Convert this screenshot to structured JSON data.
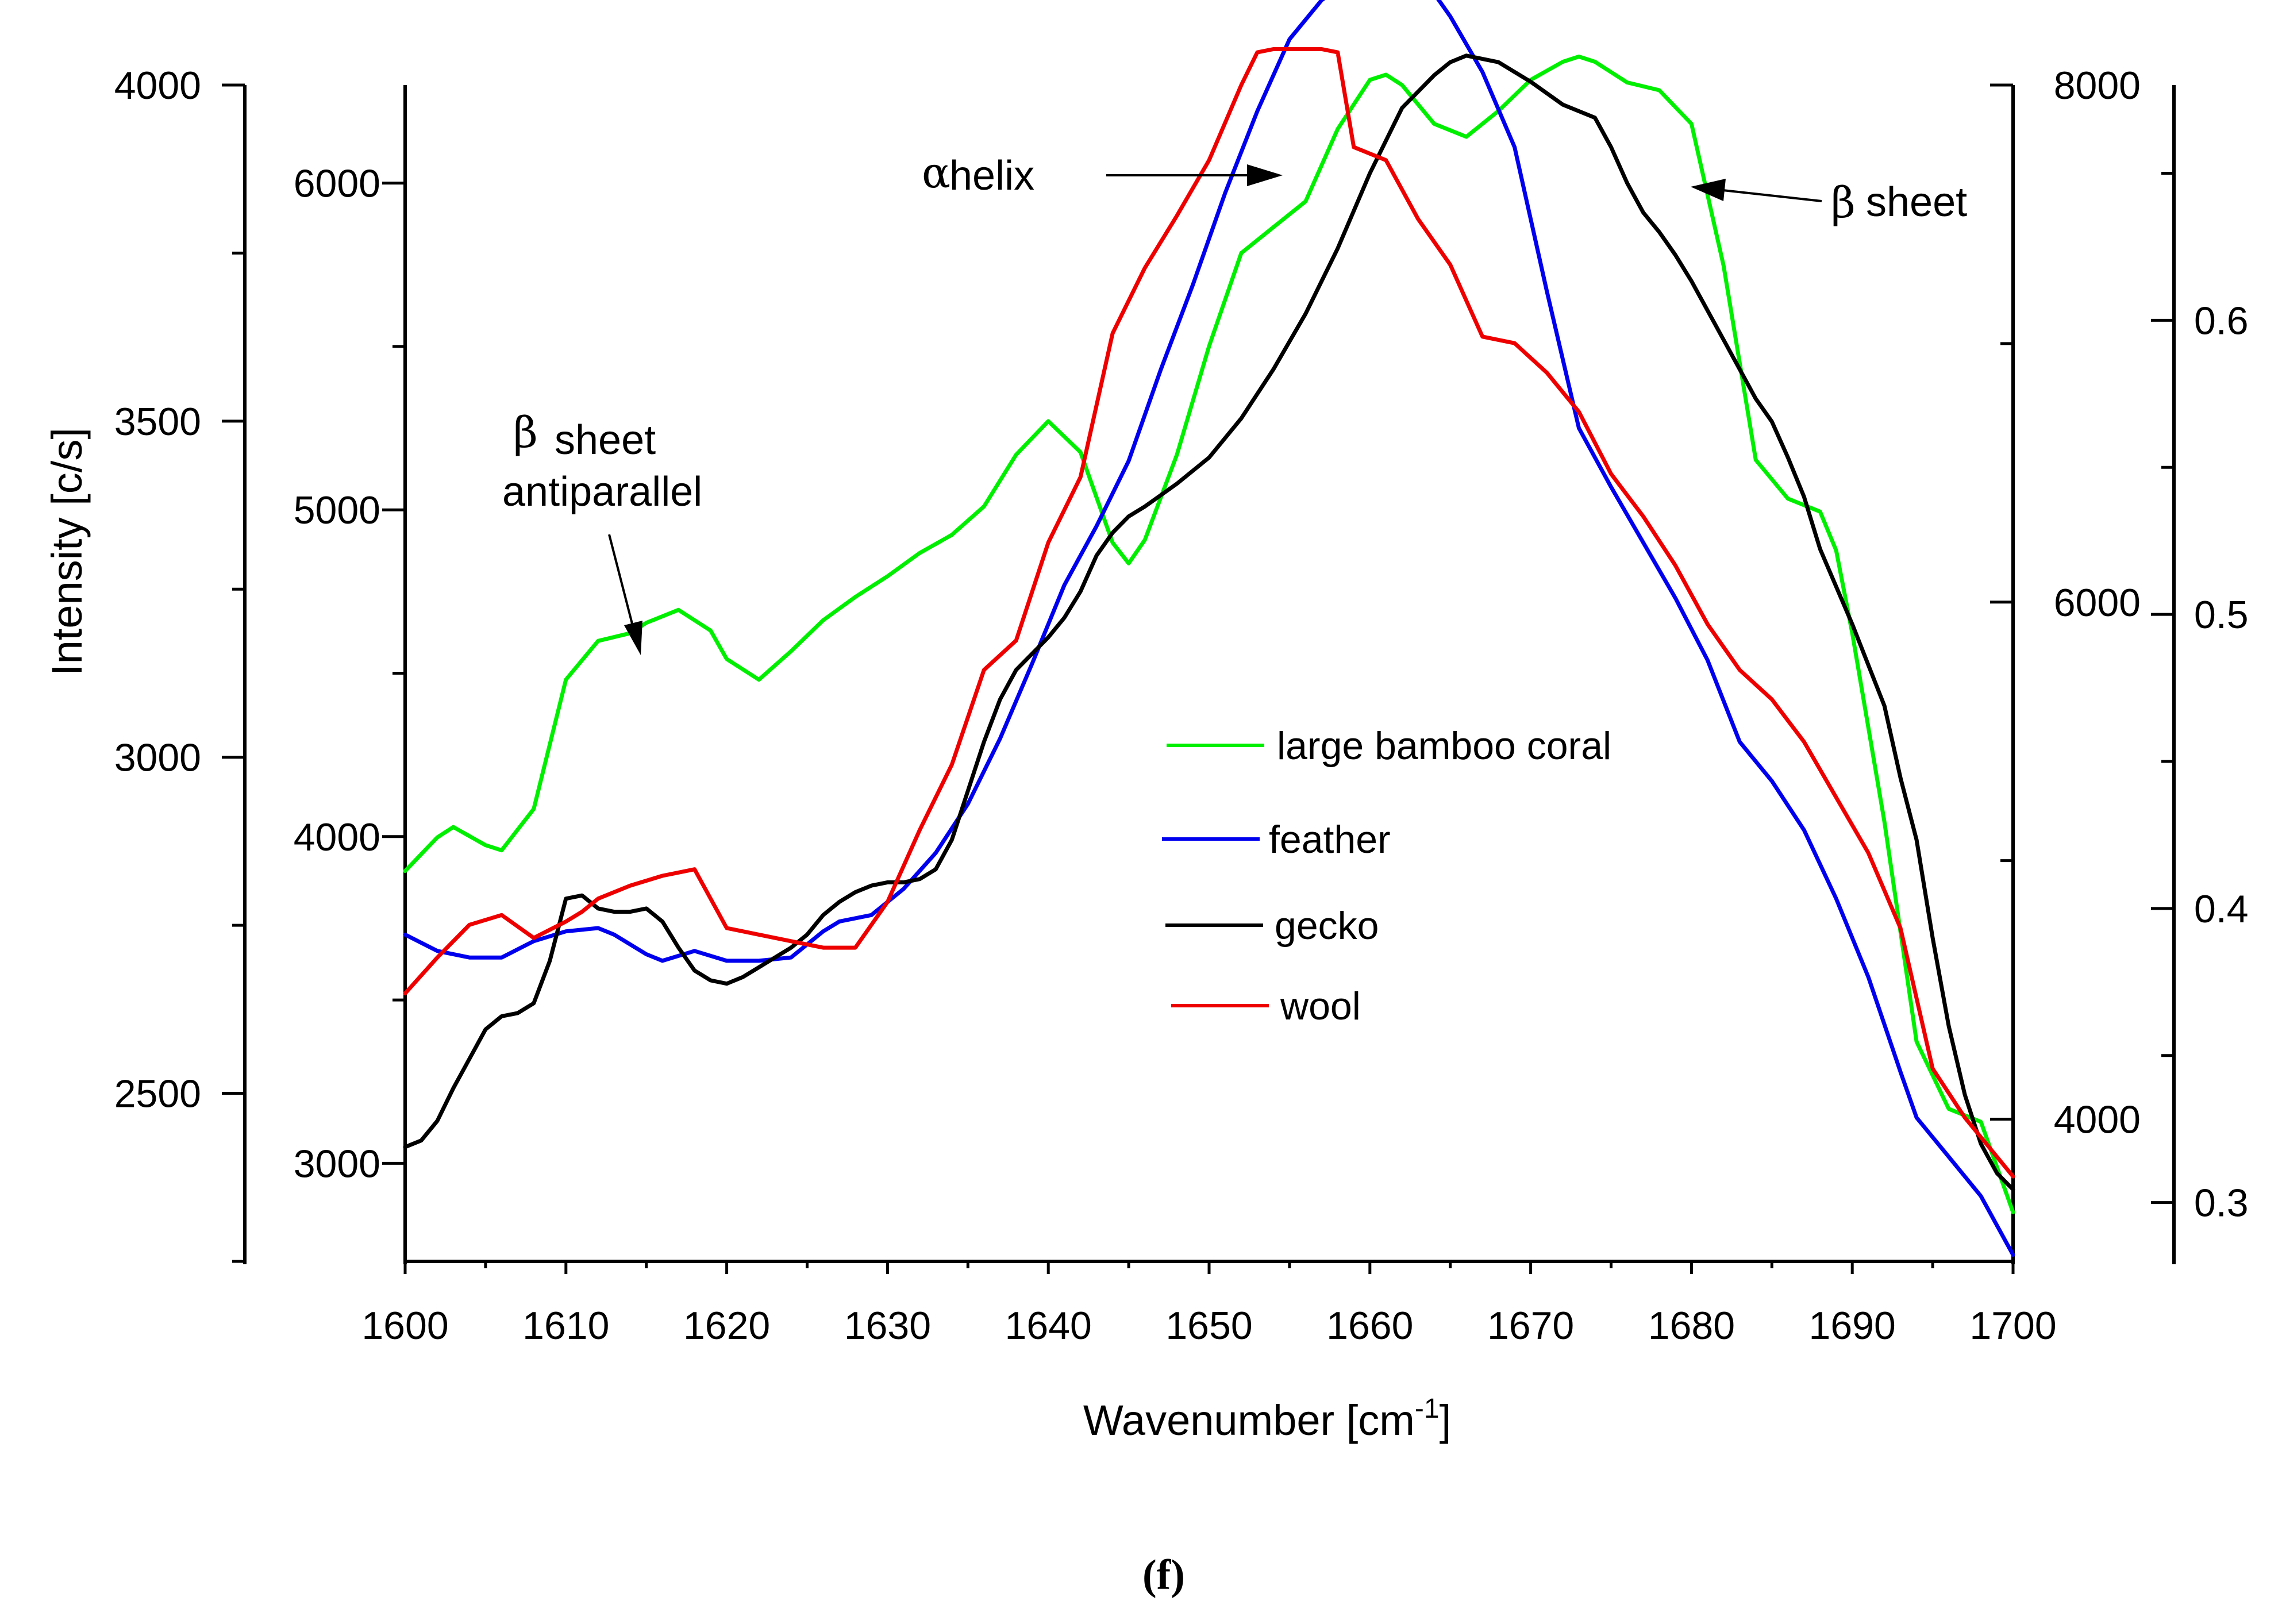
{
  "chart_data": {
    "type": "line",
    "xlabel": "Wavenumber [cm",
    "xlabel_sup": "-1",
    "xlabel_end": "]",
    "ylabel": "Intensity [c/s]",
    "caption": "(f)",
    "xlim": [
      1600,
      1700
    ],
    "x_ticks": [
      "1600",
      "1610",
      "1620",
      "1630",
      "1640",
      "1650",
      "1660",
      "1670",
      "1680",
      "1690",
      "1700"
    ],
    "y_axes": [
      {
        "name": "left-outer",
        "ylim": [
          2250,
          4000
        ],
        "ticks": [
          "2500",
          "3000",
          "3500",
          "4000"
        ]
      },
      {
        "name": "left-inner",
        "ylim": [
          2700,
          6300
        ],
        "ticks": [
          "3000",
          "4000",
          "5000",
          "6000"
        ]
      },
      {
        "name": "right-inner",
        "ylim": [
          3450,
          8000
        ],
        "ticks": [
          "4000",
          "6000",
          "8000"
        ]
      },
      {
        "name": "right-outer",
        "ylim": [
          0.28,
          0.68
        ],
        "ticks": [
          "0.3",
          "0.4",
          "0.5",
          "0.6"
        ]
      }
    ],
    "series": [
      {
        "name": "large bamboo coral",
        "color": "#00ee00",
        "axis": "right-inner",
        "x": [
          1600,
          1602,
          1603,
          1605,
          1606,
          1608,
          1610,
          1612,
          1614,
          1615,
          1617,
          1619,
          1620,
          1622,
          1624,
          1626,
          1628,
          1630,
          1632,
          1634,
          1636,
          1638,
          1640,
          1642,
          1644,
          1645,
          1646,
          1648,
          1650,
          1652,
          1654,
          1656,
          1658,
          1660,
          1661,
          1662,
          1664,
          1666,
          1668,
          1670,
          1672,
          1673,
          1674,
          1676,
          1678,
          1680,
          1682,
          1684,
          1686,
          1688,
          1689,
          1690,
          1692,
          1694,
          1696,
          1698,
          1700
        ],
        "y": [
          4960,
          5090,
          5130,
          5060,
          5040,
          5200,
          5700,
          5850,
          5880,
          5920,
          5970,
          5890,
          5780,
          5700,
          5810,
          5930,
          6020,
          6100,
          6190,
          6260,
          6370,
          6570,
          6700,
          6580,
          6230,
          6150,
          6240,
          6570,
          6990,
          7350,
          7450,
          7550,
          7830,
          8020,
          8040,
          8000,
          7850,
          7800,
          7900,
          8020,
          8090,
          8110,
          8090,
          8010,
          7980,
          7850,
          7300,
          6550,
          6400,
          6350,
          6200,
          5880,
          5150,
          4300,
          4040,
          3990,
          3640
        ]
      },
      {
        "name": "feather",
        "color": "#0000ee",
        "axis": "left-inner",
        "x": [
          1600,
          1602,
          1604,
          1606,
          1608,
          1610,
          1612,
          1613,
          1615,
          1616,
          1618,
          1620,
          1622,
          1624,
          1626,
          1627,
          1629,
          1631,
          1633,
          1635,
          1637,
          1639,
          1641,
          1643,
          1645,
          1647,
          1649,
          1651,
          1653,
          1655,
          1657,
          1659,
          1661,
          1662,
          1663,
          1665,
          1667,
          1669,
          1671,
          1673,
          1675,
          1677,
          1679,
          1681,
          1683,
          1685,
          1687,
          1689,
          1691,
          1693,
          1694,
          1696,
          1698,
          1700
        ],
        "y": [
          3700,
          3650,
          3630,
          3630,
          3680,
          3710,
          3720,
          3700,
          3640,
          3620,
          3650,
          3620,
          3620,
          3630,
          3710,
          3740,
          3760,
          3840,
          3950,
          4100,
          4300,
          4530,
          4770,
          4950,
          5150,
          5430,
          5690,
          5970,
          6220,
          6440,
          6560,
          6630,
          6690,
          6660,
          6650,
          6510,
          6340,
          6110,
          5670,
          5250,
          5070,
          4900,
          4730,
          4540,
          4290,
          4170,
          4020,
          3810,
          3570,
          3280,
          3140,
          3020,
          2900,
          2720
        ]
      },
      {
        "name": "gecko",
        "color": "#000000",
        "axis": "left-inner",
        "x": [
          1600,
          1601,
          1602,
          1603,
          1604,
          1605,
          1606,
          1607,
          1608,
          1609,
          1610,
          1611,
          1612,
          1613,
          1614,
          1615,
          1616,
          1617,
          1618,
          1619,
          1620,
          1621,
          1622,
          1623,
          1624,
          1625,
          1626,
          1627,
          1628,
          1629,
          1630,
          1631,
          1632,
          1633,
          1634,
          1635,
          1636,
          1637,
          1638,
          1639,
          1640,
          1641,
          1642,
          1643,
          1644,
          1645,
          1646,
          1648,
          1650,
          1652,
          1654,
          1656,
          1658,
          1660,
          1662,
          1664,
          1665,
          1666,
          1668,
          1670,
          1672,
          1674,
          1675,
          1676,
          1677,
          1678,
          1679,
          1680,
          1682,
          1684,
          1685,
          1686,
          1687,
          1688,
          1690,
          1692,
          1693,
          1694,
          1695,
          1696,
          1697,
          1698,
          1699,
          1700
        ],
        "y": [
          3050,
          3070,
          3130,
          3230,
          3320,
          3410,
          3450,
          3460,
          3490,
          3620,
          3810,
          3820,
          3780,
          3770,
          3770,
          3780,
          3740,
          3660,
          3590,
          3560,
          3550,
          3570,
          3600,
          3630,
          3660,
          3700,
          3760,
          3800,
          3830,
          3850,
          3860,
          3860,
          3870,
          3900,
          3990,
          4140,
          4290,
          4420,
          4510,
          4560,
          4610,
          4670,
          4750,
          4860,
          4930,
          4980,
          5010,
          5080,
          5160,
          5280,
          5430,
          5600,
          5800,
          6030,
          6230,
          6330,
          6370,
          6390,
          6370,
          6310,
          6240,
          6200,
          6110,
          6000,
          5910,
          5850,
          5780,
          5700,
          5520,
          5340,
          5270,
          5160,
          5040,
          4880,
          4650,
          4400,
          4180,
          3990,
          3690,
          3420,
          3210,
          3060,
          2970,
          2920
        ]
      },
      {
        "name": "wool",
        "color": "#ee0000",
        "axis": "left-inner",
        "x": [
          1600,
          1602,
          1604,
          1606,
          1608,
          1610,
          1611,
          1612,
          1614,
          1616,
          1618,
          1620,
          1622,
          1624,
          1626,
          1628,
          1630,
          1632,
          1634,
          1636,
          1638,
          1640,
          1642,
          1644,
          1646,
          1648,
          1650,
          1652,
          1653,
          1654,
          1656,
          1657,
          1658,
          1659,
          1661,
          1663,
          1665,
          1667,
          1669,
          1671,
          1673,
          1675,
          1677,
          1679,
          1681,
          1683,
          1685,
          1687,
          1689,
          1691,
          1693,
          1695,
          1697,
          1700
        ],
        "y": [
          3520,
          3630,
          3730,
          3760,
          3690,
          3740,
          3770,
          3810,
          3850,
          3880,
          3900,
          3720,
          3700,
          3680,
          3660,
          3660,
          3800,
          4020,
          4220,
          4510,
          4600,
          4900,
          5100,
          5540,
          5740,
          5900,
          6070,
          6300,
          6400,
          6410,
          6410,
          6410,
          6400,
          6110,
          6070,
          5890,
          5750,
          5530,
          5510,
          5420,
          5300,
          5110,
          4980,
          4830,
          4650,
          4510,
          4420,
          4290,
          4120,
          3950,
          3720,
          3290,
          3140,
          2960
        ]
      }
    ],
    "legend": [
      "large bamboo coral",
      "feather",
      "gecko",
      "wool"
    ],
    "annotations": {
      "beta_antiparallel_symbol": "β",
      "beta_antiparallel_word": "sheet",
      "beta_antiparallel_line2": "antiparallel",
      "alpha_symbol": "α",
      "alpha_word": "helix",
      "beta_sheet_symbol": "β",
      "beta_sheet_word": "sheet"
    }
  }
}
